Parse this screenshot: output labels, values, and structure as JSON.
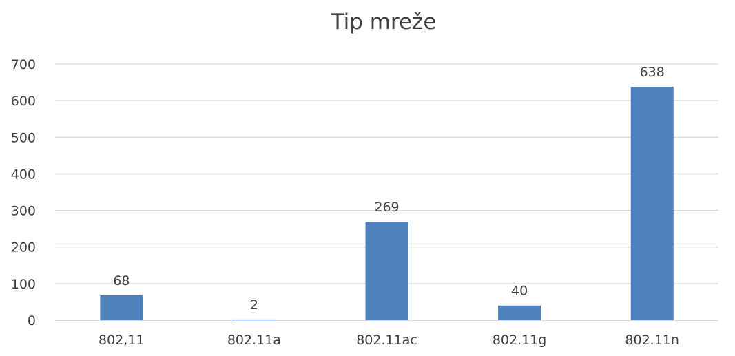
{
  "chart_data": {
    "type": "bar",
    "title": "Tip mreže",
    "categories": [
      "802,11",
      "802.11a",
      "802.11ac",
      "802.11g",
      "802.11n"
    ],
    "values": [
      68,
      2,
      269,
      40,
      638
    ],
    "data_labels": [
      "68",
      "2",
      "269",
      "40",
      "638"
    ],
    "ylim": [
      0,
      700
    ],
    "yticks": [
      0,
      100,
      200,
      300,
      400,
      500,
      600,
      700
    ],
    "grid": true,
    "legend": "none",
    "bar_color": "#4f81bd"
  }
}
